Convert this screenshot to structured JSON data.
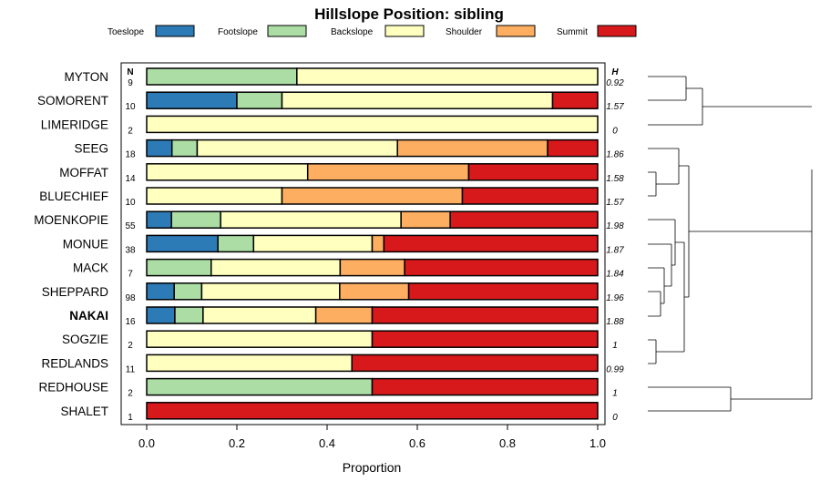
{
  "chart_data": {
    "type": "bar",
    "orientation": "horizontal-stacked",
    "title": "Hillslope Position: sibling",
    "xlabel": "Proportion",
    "ylabel": "",
    "xlim": [
      0,
      1
    ],
    "xticks": [
      "0.0",
      "0.2",
      "0.4",
      "0.6",
      "0.8",
      "1.0"
    ],
    "n_header": "N",
    "h_header": "H",
    "legend": [
      {
        "name": "Toeslope",
        "color": "#2c7bb6"
      },
      {
        "name": "Footslope",
        "color": "#abdda4"
      },
      {
        "name": "Backslope",
        "color": "#ffffbf"
      },
      {
        "name": "Shoulder",
        "color": "#fdae61"
      },
      {
        "name": "Summit",
        "color": "#d7191c"
      }
    ],
    "rows": [
      {
        "label": "MYTON",
        "n": "9",
        "h": "0.92",
        "bold": false,
        "values": [
          0,
          0.333,
          0.667,
          0,
          0
        ]
      },
      {
        "label": "SOMORENT",
        "n": "10",
        "h": "1.57",
        "bold": false,
        "values": [
          0.2,
          0.1,
          0.6,
          0,
          0.1
        ]
      },
      {
        "label": "LIMERIDGE",
        "n": "2",
        "h": "0",
        "bold": false,
        "values": [
          0,
          0,
          1,
          0,
          0
        ]
      },
      {
        "label": "SEEG",
        "n": "18",
        "h": "1.86",
        "bold": false,
        "values": [
          0.056,
          0.056,
          0.444,
          0.333,
          0.111
        ]
      },
      {
        "label": "MOFFAT",
        "n": "14",
        "h": "1.58",
        "bold": false,
        "values": [
          0,
          0,
          0.357,
          0.357,
          0.286
        ]
      },
      {
        "label": "BLUECHIEF",
        "n": "10",
        "h": "1.57",
        "bold": false,
        "values": [
          0,
          0,
          0.3,
          0.4,
          0.3
        ]
      },
      {
        "label": "MOENKOPIE",
        "n": "55",
        "h": "1.98",
        "bold": false,
        "values": [
          0.055,
          0.109,
          0.4,
          0.109,
          0.327
        ]
      },
      {
        "label": "MONUE",
        "n": "38",
        "h": "1.87",
        "bold": false,
        "values": [
          0.158,
          0.079,
          0.263,
          0.026,
          0.474
        ]
      },
      {
        "label": "MACK",
        "n": "7",
        "h": "1.84",
        "bold": false,
        "values": [
          0,
          0.143,
          0.286,
          0.143,
          0.428
        ]
      },
      {
        "label": "SHEPPARD",
        "n": "98",
        "h": "1.96",
        "bold": false,
        "values": [
          0.061,
          0.061,
          0.306,
          0.153,
          0.419
        ]
      },
      {
        "label": "NAKAI",
        "n": "16",
        "h": "1.88",
        "bold": true,
        "values": [
          0.0625,
          0.0625,
          0.25,
          0.125,
          0.5
        ]
      },
      {
        "label": "SOGZIE",
        "n": "2",
        "h": "1",
        "bold": false,
        "values": [
          0,
          0,
          0.5,
          0,
          0.5
        ]
      },
      {
        "label": "REDLANDS",
        "n": "11",
        "h": "0.99",
        "bold": false,
        "values": [
          0,
          0,
          0.455,
          0,
          0.545
        ]
      },
      {
        "label": "REDHOUSE",
        "n": "2",
        "h": "1",
        "bold": false,
        "values": [
          0,
          0.5,
          0,
          0,
          0.5
        ]
      },
      {
        "label": "SHALET",
        "n": "1",
        "h": "0",
        "bold": false,
        "values": [
          0,
          0,
          0,
          0,
          1
        ]
      }
    ]
  }
}
